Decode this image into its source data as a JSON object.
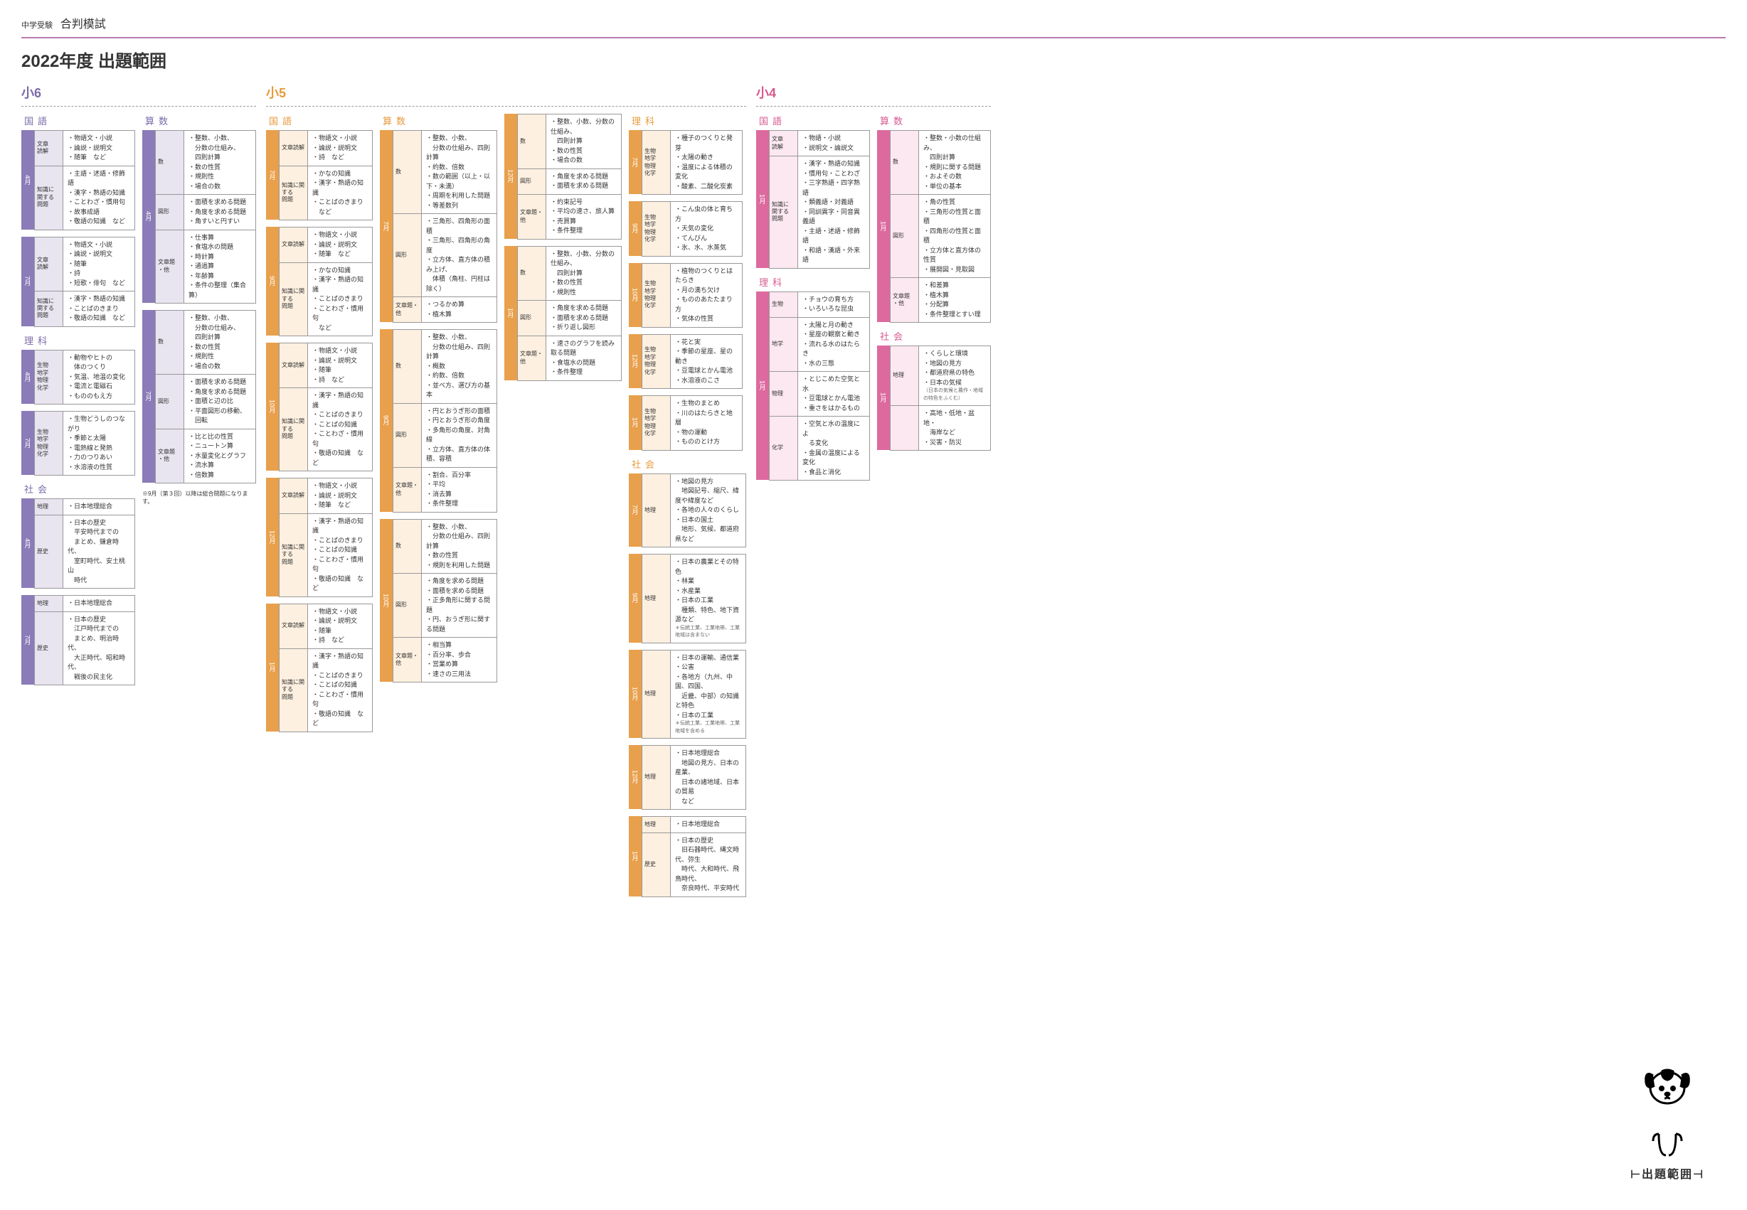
{
  "header": {
    "small": "中学受験",
    "main": "合判模試"
  },
  "title": "2022年度 出題範囲",
  "mascot_label": "出題範囲",
  "grades": {
    "g6": {
      "label": "小6",
      "subjects": [
        {
          "name": "国語",
          "width": "w160",
          "blocks": [
            {
              "month": "4月",
              "rows": [
                {
                  "label": "文章\n読解",
                  "items": [
                    "物語文・小説",
                    "論説・説明文",
                    "随筆　など"
                  ]
                },
                {
                  "label": "知識に\n関する\n問題",
                  "items": [
                    "主語・述語・修飾語",
                    "漢字・熟語の知識",
                    "ことわざ・慣用句",
                    "故事成語",
                    "敬語の知識　など"
                  ]
                }
              ]
            },
            {
              "month": "7月",
              "rows": [
                {
                  "label": "文章\n読解",
                  "items": [
                    "物語文・小説",
                    "論説・説明文",
                    "随筆",
                    "詩",
                    "短歌・俳句　など"
                  ]
                },
                {
                  "label": "知識に\n関する\n問題",
                  "items": [
                    "漢字・熟語の知識",
                    "ことばのきまり",
                    "敬語の知識　など"
                  ]
                }
              ]
            }
          ]
        },
        {
          "name": "理科",
          "width": "w160",
          "blocks": [
            {
              "month": "4月",
              "rows": [
                {
                  "label": "生物\n地学\n物理\n化学",
                  "items": [
                    "動物やヒトの\n　体のつくり",
                    "気温、地温の変化",
                    "電流と電磁石",
                    "もののもえ方"
                  ]
                }
              ]
            },
            {
              "month": "7月",
              "rows": [
                {
                  "label": "生物\n地学\n物理\n化学",
                  "items": [
                    "生物どうしのつながり",
                    "季節と太陽",
                    "電熱線と発熱",
                    "力のつりあい",
                    "水溶液の性質"
                  ]
                }
              ]
            }
          ]
        },
        {
          "name": "社会",
          "width": "w160",
          "blocks": [
            {
              "month": "4月",
              "rows": [
                {
                  "label": "地理",
                  "items": [
                    "日本地理総合"
                  ]
                },
                {
                  "label": "歴史",
                  "items": [
                    "日本の歴史\n　平安時代までの\n　まとめ、鎌倉時代、\n　室町時代、安土桃山\n　時代"
                  ]
                }
              ]
            },
            {
              "month": "7月",
              "rows": [
                {
                  "label": "地理",
                  "items": [
                    "日本地理総合"
                  ]
                },
                {
                  "label": "歴史",
                  "items": [
                    "日本の歴史\n　江戸時代までの\n　まとめ、明治時代、\n　大正時代、昭和時代、\n　戦後の民主化"
                  ]
                }
              ]
            }
          ]
        },
        {
          "name": "算数",
          "width": "w160",
          "blocks": [
            {
              "month": "4月",
              "rows": [
                {
                  "label": "数",
                  "items": [
                    "整数、小数、\n　分数の仕組み、\n　四則計算",
                    "数の性質",
                    "規則性",
                    "場合の数"
                  ]
                },
                {
                  "label": "図形",
                  "items": [
                    "面積を求める問題",
                    "角度を求める問題",
                    "角すいと円すい"
                  ]
                },
                {
                  "label": "文章題\n・他",
                  "items": [
                    "仕事算",
                    "食塩水の問題",
                    "時計算",
                    "通過算",
                    "年齢算",
                    "条件の整理（集合算）"
                  ]
                }
              ]
            },
            {
              "month": "7月",
              "rows": [
                {
                  "label": "数",
                  "items": [
                    "整数、小数、\n　分数の仕組み、\n　四則計算",
                    "数の性質",
                    "規則性",
                    "場合の数"
                  ]
                },
                {
                  "label": "図形",
                  "items": [
                    "面積を求める問題",
                    "角度を求める問題",
                    "面積と辺の比",
                    "平面図形の移動、\n　回転"
                  ]
                },
                {
                  "label": "文章題\n・他",
                  "items": [
                    "比と比の性質",
                    "ニュートン算",
                    "水量変化とグラフ",
                    "流水算",
                    "倍数算"
                  ]
                }
              ]
            }
          ],
          "note": "※9月（第３回）以降は総合問題になります。"
        }
      ]
    },
    "g5": {
      "label": "小5",
      "subjects": [
        {
          "name": "国語",
          "width": "w150",
          "blocks": [
            {
              "month": "7月",
              "rows": [
                {
                  "label": "文章読解",
                  "items": [
                    "物語文・小説",
                    "論説・説明文",
                    "詩　など"
                  ]
                },
                {
                  "label": "知識に関する\n問題",
                  "items": [
                    "かなの知識",
                    "漢字・熟語の知識",
                    "ことばのきまり\n　など"
                  ]
                }
              ]
            },
            {
              "month": "9月",
              "rows": [
                {
                  "label": "文章読解",
                  "items": [
                    "物語文・小説",
                    "論説・説明文",
                    "随筆　など"
                  ]
                },
                {
                  "label": "知識に関する\n問題",
                  "items": [
                    "かなの知識",
                    "漢字・熟語の知識",
                    "ことばのきまり",
                    "ことわざ・慣用句\n　など"
                  ]
                }
              ]
            },
            {
              "month": "10月",
              "rows": [
                {
                  "label": "文章読解",
                  "items": [
                    "物語文・小説",
                    "論説・説明文",
                    "随筆",
                    "詩　など"
                  ]
                },
                {
                  "label": "知識に関する\n問題",
                  "items": [
                    "漢字・熟語の知識",
                    "ことばのきまり",
                    "ことばの知識",
                    "ことわざ・慣用句",
                    "敬語の知識　など"
                  ]
                }
              ]
            },
            {
              "month": "12月",
              "rows": [
                {
                  "label": "文章読解",
                  "items": [
                    "物語文・小説",
                    "論説・説明文",
                    "随筆　など"
                  ]
                },
                {
                  "label": "知識に関する\n問題",
                  "items": [
                    "漢字・熟語の知識",
                    "ことばのきまり",
                    "ことばの知識",
                    "ことわざ・慣用句",
                    "敬語の知識　など"
                  ]
                }
              ]
            },
            {
              "month": "1月",
              "rows": [
                {
                  "label": "文章読解",
                  "items": [
                    "物語文・小説",
                    "論説・説明文",
                    "随筆",
                    "詩　など"
                  ]
                },
                {
                  "label": "知識に関する\n問題",
                  "items": [
                    "漢字・熟語の知識",
                    "ことばのきまり",
                    "ことばの知識",
                    "ことわざ・慣用句",
                    "敬語の知識　など"
                  ]
                }
              ]
            }
          ]
        },
        {
          "name": "算数",
          "width": "w165",
          "blocks": [
            {
              "month": "7月",
              "rows": [
                {
                  "label": "数",
                  "items": [
                    "整数、小数、\n　分数の仕組み、四則計算",
                    "約数、倍数",
                    "数の範囲（以上・以下・未満）",
                    "周期を利用した問題",
                    "等差数列"
                  ]
                },
                {
                  "label": "図形",
                  "items": [
                    "三角形、四角形の面積",
                    "三角形、四角形の角度",
                    "立方体、直方体の積み上げ、\n　体積（角柱、円柱は除く）"
                  ]
                },
                {
                  "label": "文章題・\n他",
                  "items": [
                    "つるかめ算",
                    "植木算"
                  ]
                }
              ]
            },
            {
              "month": "9月",
              "rows": [
                {
                  "label": "数",
                  "items": [
                    "整数、小数、\n　分数の仕組み、四則計算",
                    "概数",
                    "約数、倍数",
                    "並べ方、選び方の基本"
                  ]
                },
                {
                  "label": "図形",
                  "items": [
                    "円とおうぎ形の面積",
                    "円とおうぎ形の角度",
                    "多角形の角度、対角線",
                    "立方体、直方体の体積、容積"
                  ]
                },
                {
                  "label": "文章題・\n他",
                  "items": [
                    "割合、百分率",
                    "平均",
                    "消去算",
                    "条件整理"
                  ]
                }
              ]
            },
            {
              "month": "10月",
              "rows": [
                {
                  "label": "数",
                  "items": [
                    "整数、小数、\n　分数の仕組み、四則計算",
                    "数の性質",
                    "規則を利用した問題"
                  ]
                },
                {
                  "label": "図形",
                  "items": [
                    "角度を求める問題",
                    "面積を求める問題",
                    "正多角形に関する問題",
                    "円、おうぎ形に関する問題"
                  ]
                },
                {
                  "label": "文章題・\n他",
                  "items": [
                    "相当算",
                    "百分率、歩合",
                    "営業め算",
                    "速さの三用法"
                  ]
                }
              ]
            }
          ]
        },
        {
          "name": "",
          "width": "w165",
          "blocks": [
            {
              "month": "12月",
              "rows": [
                {
                  "label": "数",
                  "items": [
                    "整数、小数、分数の仕組み、\n　四則計算",
                    "数の性質",
                    "場合の数"
                  ]
                },
                {
                  "label": "図形",
                  "items": [
                    "角度を求める問題",
                    "面積を求める問題"
                  ]
                },
                {
                  "label": "文章題・\n他",
                  "items": [
                    "約束記号",
                    "平均の速さ、旅人算",
                    "売買算",
                    "条件整理"
                  ]
                }
              ]
            },
            {
              "month": "1月",
              "rows": [
                {
                  "label": "数",
                  "items": [
                    "整数、小数、分数の仕組み、\n　四則計算",
                    "数の性質",
                    "規則性"
                  ]
                },
                {
                  "label": "図形",
                  "items": [
                    "角度を求める問題",
                    "面積を求める問題",
                    "折り返し図形"
                  ]
                },
                {
                  "label": "文章題・\n他",
                  "items": [
                    "速さのグラフを読み取る問題",
                    "食塩水の問題",
                    "条件整理"
                  ]
                }
              ]
            }
          ]
        },
        {
          "name": "理科",
          "width": "w160",
          "blocks": [
            {
              "month": "7月",
              "rows": [
                {
                  "label": "生物\n地学\n物理\n化学",
                  "items": [
                    "種子のつくりと発芽",
                    "太陽の動き",
                    "温度による体積の変化",
                    "酸素、二酸化炭素"
                  ]
                }
              ]
            },
            {
              "month": "9月",
              "rows": [
                {
                  "label": "生物\n地学\n物理\n化学",
                  "items": [
                    "こん虫の体と育ち方",
                    "天気の変化",
                    "てんびん",
                    "氷、水、水蒸気"
                  ]
                }
              ]
            },
            {
              "month": "10月",
              "rows": [
                {
                  "label": "生物\n地学\n物理\n化学",
                  "items": [
                    "植物のつくりとはたらき",
                    "月の満ち欠け",
                    "もののあたたまり方",
                    "気体の性質"
                  ]
                }
              ]
            },
            {
              "month": "12月",
              "rows": [
                {
                  "label": "生物\n地学\n物理\n化学",
                  "items": [
                    "花と実",
                    "季節の星座、星の動き",
                    "豆電球とかん電池",
                    "水溶液のこさ"
                  ]
                }
              ]
            },
            {
              "month": "1月",
              "rows": [
                {
                  "label": "生物\n地学\n物理\n化学",
                  "items": [
                    "生物のまとめ",
                    "川のはたらきと地層",
                    "物の運動",
                    "もののとけ方"
                  ]
                }
              ]
            }
          ]
        },
        {
          "name": "社会",
          "width": "w165",
          "blocks": [
            {
              "month": "7月",
              "rows": [
                {
                  "label": "地理",
                  "items": [
                    "地図の見方\n　地図記号、縮尺、緯度や緯度など",
                    "各地の人々のくらし",
                    "日本の国土\n　地形、気候、都道府県など"
                  ]
                }
              ]
            },
            {
              "month": "9月",
              "rows": [
                {
                  "label": "地理",
                  "items": [
                    "日本の農業とその特色",
                    "林業",
                    "水産業",
                    "日本の工業\n　種類、特色、地下資源など"
                  ],
                  "footnote": "＊伝統工業、工業地帯、工業地域は含まない"
                }
              ]
            },
            {
              "month": "10月",
              "rows": [
                {
                  "label": "地理",
                  "items": [
                    "日本の運輸、通信業",
                    "公害",
                    "各地方（九州、中国、四国、\n　近畿、中部）の知識と特色",
                    "日本の工業"
                  ],
                  "footnote": "＊伝統工業、工業地帯、工業地域を含める"
                }
              ]
            },
            {
              "month": "12月",
              "rows": [
                {
                  "label": "地理",
                  "items": [
                    "日本地理総合\n　地図の見方、日本の産業、\n　日本の諸地域、日本の貿易\n　など"
                  ]
                }
              ]
            },
            {
              "month": "1月",
              "rows": [
                {
                  "label": "地理",
                  "items": [
                    "日本地理総合"
                  ]
                },
                {
                  "label": "歴史",
                  "items": [
                    "日本の歴史\n　旧石器時代、縄文時代、弥生\n　時代、大和時代、飛鳥時代、\n　奈良時代、平安時代"
                  ]
                }
              ]
            }
          ]
        }
      ]
    },
    "g4": {
      "label": "小4",
      "subjects": [
        {
          "name": "国語",
          "width": "w160",
          "blocks": [
            {
              "month": "1月",
              "rows": [
                {
                  "label": "文章\n読解",
                  "items": [
                    "物語・小説",
                    "説明文・論説文"
                  ]
                },
                {
                  "label": "知識に\n関する\n問題",
                  "items": [
                    "漢字・熟語の知識",
                    "慣用句・ことわざ",
                    "三字熟語・四字熟語",
                    "類義語・対義語",
                    "同訓異字・同音異義語",
                    "主語・述語・修飾語",
                    "和語・漢語・外来語"
                  ]
                }
              ]
            }
          ]
        },
        {
          "name": "理科",
          "width": "w160",
          "blocks": [
            {
              "month": "1月",
              "rows": [
                {
                  "label": "生物",
                  "items": [
                    "チョウの育ち方",
                    "いろいろな昆虫"
                  ]
                },
                {
                  "label": "地学",
                  "items": [
                    "太陽と月の動き",
                    "星座の観察と動き",
                    "流れる水のはたらき",
                    "水の三態"
                  ]
                },
                {
                  "label": "物理",
                  "items": [
                    "とじこめた空気と水",
                    "豆電球とかん電池",
                    "重さをはかるもの"
                  ]
                },
                {
                  "label": "化学",
                  "items": [
                    "空気と水の温度によ\n　る変化",
                    "金属の温度による変化",
                    "食品と消化"
                  ]
                }
              ]
            }
          ]
        },
        {
          "name": "算数",
          "width": "w160",
          "blocks": [
            {
              "month": "1月",
              "rows": [
                {
                  "label": "数",
                  "items": [
                    "整数・小数の仕組み、\n　四則計算",
                    "規則に関する問題",
                    "およその数",
                    "単位の基本"
                  ]
                },
                {
                  "label": "図形",
                  "items": [
                    "角の性質",
                    "三角形の性質と面積",
                    "四角形の性質と面積",
                    "立方体と直方体の性質",
                    "展開図・見取図"
                  ]
                },
                {
                  "label": "文章題\n・他",
                  "items": [
                    "和差算",
                    "植木算",
                    "分配算",
                    "条件整理とすい理"
                  ]
                }
              ]
            }
          ]
        },
        {
          "name": "社会",
          "width": "w160",
          "blocks": [
            {
              "month": "1月",
              "rows": [
                {
                  "label": "地理",
                  "items": [
                    "くらしと環境",
                    "地図の見方",
                    "都道府県の特色",
                    "日本の気候"
                  ],
                  "footnote": "（日本の気候と農作・地域の特色をふくむ）"
                },
                {
                  "label": "",
                  "items": [
                    "高地・低地・盆地・\n　海岸など",
                    "災害・防災"
                  ]
                }
              ]
            }
          ]
        }
      ]
    }
  }
}
